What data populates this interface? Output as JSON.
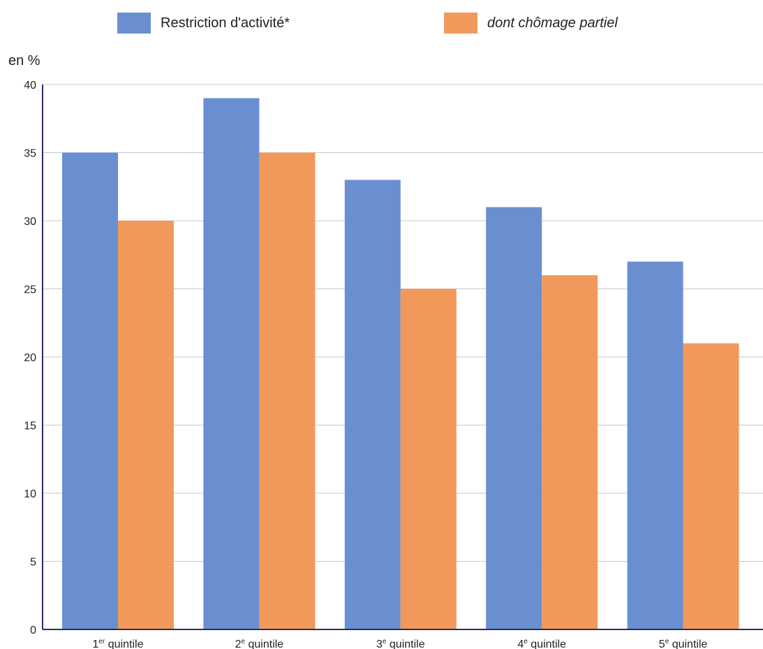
{
  "chart_data": {
    "type": "bar",
    "ylabel": "en %",
    "ylim": [
      0,
      40
    ],
    "yticks": [
      0,
      5,
      10,
      15,
      20,
      25,
      30,
      35,
      40
    ],
    "grid": true,
    "legend_position": "top",
    "categories": [
      {
        "num": "1",
        "sup": "er",
        "rest": " quintile"
      },
      {
        "num": "2",
        "sup": "e",
        "rest": " quintile"
      },
      {
        "num": "3",
        "sup": "e",
        "rest": " quintile"
      },
      {
        "num": "4",
        "sup": "e",
        "rest": " quintile"
      },
      {
        "num": "5",
        "sup": "e",
        "rest": " quintile"
      }
    ],
    "series": [
      {
        "name": "Restriction d'activité*",
        "color": "#6a8fd0",
        "italic": false,
        "values": [
          35,
          39,
          33,
          31,
          27
        ]
      },
      {
        "name": "dont chômage partiel",
        "color": "#f0995a",
        "italic": true,
        "values": [
          30,
          35,
          25,
          26,
          21
        ]
      }
    ]
  }
}
